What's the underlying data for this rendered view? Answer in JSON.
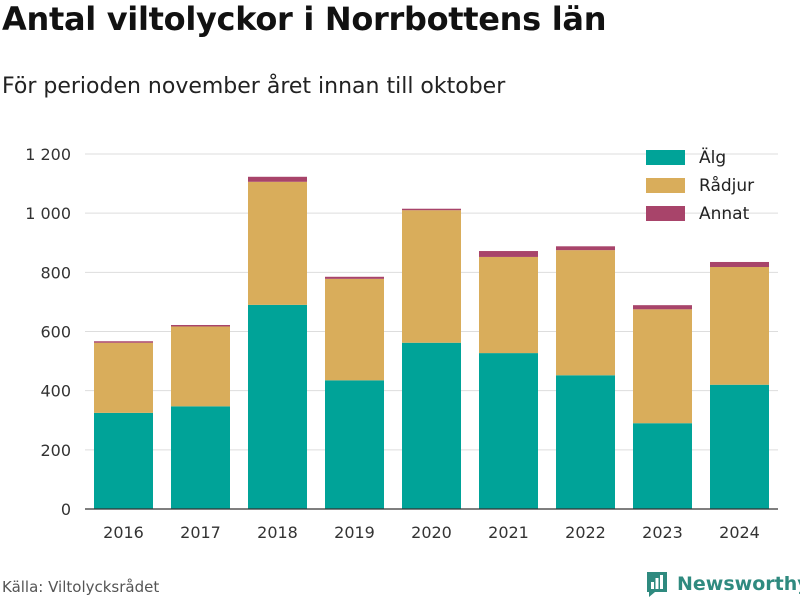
{
  "header": {
    "title": "Antal viltolyckor i Norrbottens län",
    "subtitle": "För perioden november året innan till oktober"
  },
  "footer": {
    "source": "Källa: Viltolycksrådet",
    "brand": "Newsworthy"
  },
  "colors": {
    "alg": "#00a398",
    "radjur": "#d9ad5b",
    "annat": "#a8446a",
    "grid": "#dddddd",
    "brand": "#2f8a7f"
  },
  "chart_data": {
    "type": "bar",
    "stacked": true,
    "categories": [
      "2016",
      "2017",
      "2018",
      "2019",
      "2020",
      "2021",
      "2022",
      "2023",
      "2024"
    ],
    "series": [
      {
        "name": "Älg",
        "color": "#00a398",
        "values": [
          325,
          347,
          690,
          435,
          562,
          527,
          452,
          290,
          420
        ]
      },
      {
        "name": "Rådjur",
        "color": "#d9ad5b",
        "values": [
          237,
          270,
          416,
          343,
          448,
          325,
          423,
          385,
          398
        ]
      },
      {
        "name": "Annat",
        "color": "#a8446a",
        "values": [
          5,
          5,
          17,
          7,
          5,
          20,
          13,
          14,
          17
        ]
      }
    ],
    "yticks": [
      0,
      200,
      400,
      600,
      800,
      1000,
      1200
    ],
    "ytick_labels": [
      "0",
      "200",
      "400",
      "600",
      "800",
      "1 000",
      "1 200"
    ],
    "ylim": [
      0,
      1200
    ],
    "grid": true,
    "legend_position": "top-right"
  }
}
